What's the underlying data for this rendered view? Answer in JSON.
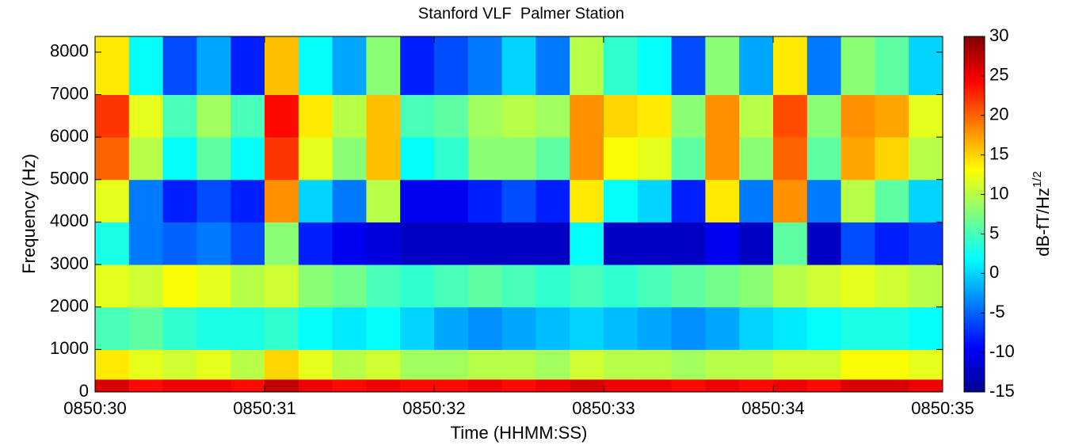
{
  "chart_data": {
    "type": "heatmap",
    "title": "Stanford VLF  Palmer Station",
    "x_label": "Time (HHMM:SS)",
    "y_label": "Frequency (Hz)",
    "colorbar_label": "dB-fT/Hz",
    "colorbar_label_sup": "1/2",
    "colormap": "jet",
    "xlim": [
      0,
      5
    ],
    "xticks": [
      {
        "value": 0,
        "label": "0850:30"
      },
      {
        "value": 1,
        "label": "0850:31"
      },
      {
        "value": 2,
        "label": "0850:32"
      },
      {
        "value": 3,
        "label": "0850:33"
      },
      {
        "value": 4,
        "label": "0850:34"
      },
      {
        "value": 5,
        "label": "0850:35"
      }
    ],
    "ylim": [
      0,
      8370
    ],
    "yticks": [
      0,
      1000,
      2000,
      3000,
      4000,
      5000,
      6000,
      7000,
      8000
    ],
    "clim": [
      -15,
      30
    ],
    "cticks": [
      -15,
      -10,
      -5,
      0,
      5,
      10,
      15,
      20,
      25,
      30
    ],
    "x_bins": [
      0,
      0.2,
      0.4,
      0.6,
      0.8,
      1,
      1.2,
      1.4,
      1.6,
      1.8,
      2,
      2.2,
      2.4,
      2.6,
      2.8,
      3,
      3.2,
      3.4,
      3.6,
      3.8,
      4,
      4.2,
      4.4,
      4.6,
      4.8,
      5
    ],
    "y_bins": [
      0,
      300,
      1000,
      2000,
      3000,
      4000,
      5000,
      6000,
      7000,
      8370
    ],
    "z": [
      [
        26,
        24,
        25,
        25,
        24,
        27,
        25,
        24,
        25,
        24,
        24,
        25,
        24,
        25,
        26,
        25,
        25,
        24,
        25,
        24,
        25,
        24,
        26,
        26,
        25
      ],
      [
        14,
        12,
        11,
        12,
        10,
        15,
        12,
        10,
        11,
        9,
        9,
        10,
        10,
        9,
        11,
        10,
        10,
        9,
        10,
        10,
        11,
        11,
        13,
        13,
        12
      ],
      [
        5,
        6,
        4,
        3,
        3,
        4,
        2,
        1,
        2,
        0,
        -2,
        -3,
        -2,
        -1,
        0,
        -1,
        -2,
        -3,
        -2,
        0,
        1,
        2,
        3,
        3,
        2
      ],
      [
        12,
        11,
        13,
        12,
        10,
        11,
        8,
        7,
        5,
        4,
        5,
        6,
        5,
        4,
        5,
        4,
        5,
        6,
        7,
        8,
        10,
        11,
        12,
        11,
        10
      ],
      [
        3,
        -4,
        -5,
        -4,
        -6,
        8,
        -8,
        -10,
        -11,
        -12,
        -12,
        -12,
        -12,
        -12,
        2,
        -12,
        -12,
        -12,
        -10,
        -12,
        6,
        -12,
        -6,
        -8,
        -7
      ],
      [
        12,
        -4,
        -8,
        -6,
        -8,
        18,
        0,
        -4,
        10,
        -10,
        -10,
        -8,
        -6,
        -8,
        14,
        2,
        0,
        -8,
        14,
        -4,
        18,
        -4,
        10,
        6,
        0
      ],
      [
        20,
        10,
        2,
        6,
        2,
        22,
        12,
        8,
        16,
        2,
        4,
        8,
        8,
        6,
        18,
        13,
        12,
        6,
        18,
        8,
        20,
        6,
        17,
        15,
        10
      ],
      [
        22,
        12,
        5,
        9,
        5,
        24,
        14,
        10,
        16,
        5,
        6,
        9,
        10,
        9,
        18,
        15,
        14,
        8,
        18,
        10,
        21,
        8,
        18,
        17,
        12
      ],
      [
        14,
        2,
        -6,
        -2,
        -8,
        16,
        2,
        -2,
        8,
        -8,
        -6,
        -4,
        0,
        -4,
        10,
        4,
        2,
        -6,
        8,
        -2,
        14,
        -4,
        8,
        6,
        0
      ]
    ]
  }
}
